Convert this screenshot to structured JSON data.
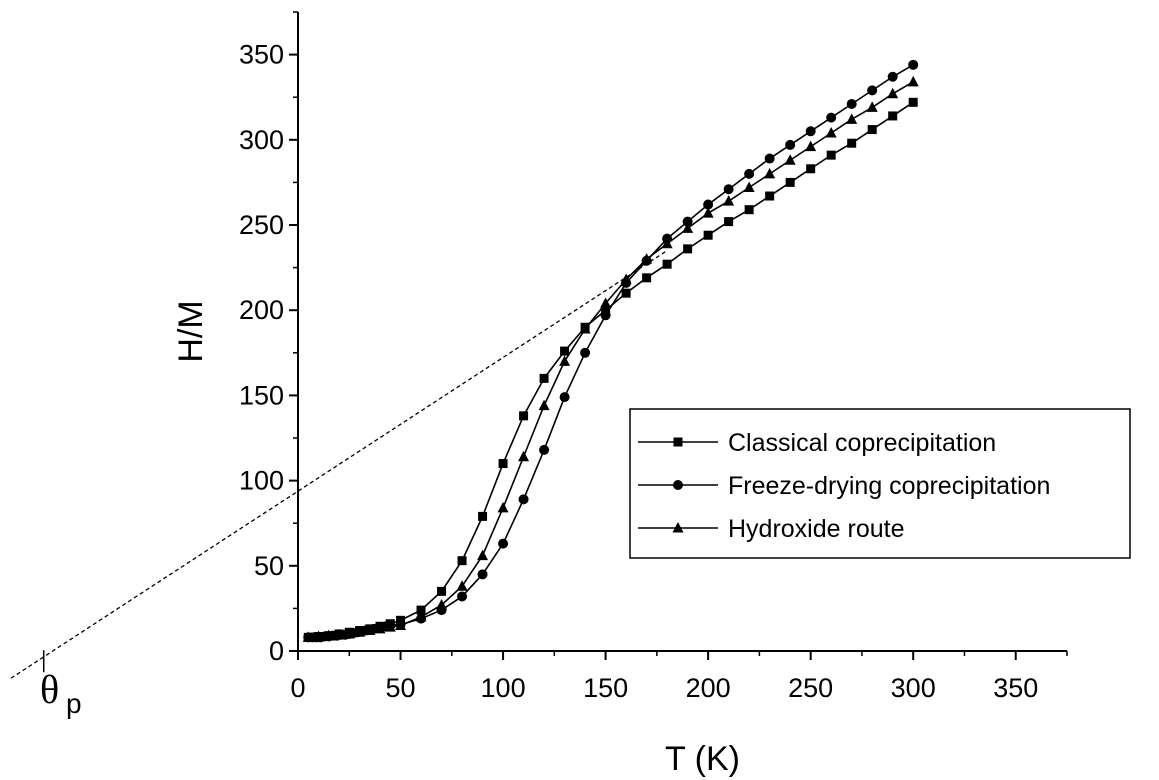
{
  "chart_data": {
    "type": "line",
    "xlabel": "T (K)",
    "ylabel": "H/M",
    "xlim": [
      0,
      375
    ],
    "ylim": [
      0,
      375
    ],
    "xticks": [
      0,
      50,
      100,
      150,
      200,
      250,
      300,
      350
    ],
    "yticks": [
      0,
      50,
      100,
      150,
      200,
      250,
      300,
      350
    ],
    "grid": false,
    "legend_position": "center-right",
    "series": [
      {
        "name": "Classical coprecipitation",
        "marker": "square",
        "color": "#000000",
        "x": [
          5,
          10,
          15,
          20,
          25,
          30,
          35,
          40,
          45,
          50,
          60,
          70,
          80,
          90,
          100,
          110,
          120,
          130,
          140,
          150,
          160,
          170,
          180,
          190,
          200,
          210,
          220,
          230,
          240,
          250,
          260,
          270,
          280,
          290,
          300
        ],
        "y": [
          8,
          8.5,
          9,
          10,
          11,
          12,
          13,
          14.5,
          16,
          18,
          24,
          35,
          53,
          79,
          110,
          138,
          160,
          176,
          190,
          200,
          210,
          219,
          227,
          236,
          244,
          252,
          259,
          267,
          275,
          283,
          291,
          298,
          306,
          314,
          322
        ]
      },
      {
        "name": "Freeze-drying coprecipitation",
        "marker": "circle",
        "color": "#000000",
        "x": [
          5,
          7,
          9,
          11,
          13,
          15,
          17,
          19,
          21,
          23,
          25,
          27,
          29,
          31,
          33,
          35,
          37,
          39,
          41,
          43,
          45,
          50,
          60,
          70,
          80,
          90,
          100,
          110,
          120,
          130,
          140,
          150,
          160,
          170,
          180,
          190,
          200,
          210,
          220,
          230,
          240,
          250,
          260,
          270,
          280,
          290,
          300
        ],
        "y": [
          8,
          8,
          8,
          8,
          8.5,
          8.5,
          9,
          9,
          9.5,
          9.5,
          10,
          10.5,
          11,
          11.5,
          12,
          12.5,
          13,
          13.5,
          14,
          14.5,
          15,
          15.5,
          19,
          24,
          32,
          45,
          63,
          89,
          118,
          149,
          175,
          197,
          216,
          229,
          242,
          252,
          262,
          271,
          280,
          289,
          297,
          305,
          313,
          321,
          329,
          337,
          344
        ]
      },
      {
        "name": "Hydroxide route",
        "marker": "triangle",
        "color": "#000000",
        "x": [
          5,
          10,
          15,
          20,
          25,
          30,
          35,
          40,
          45,
          50,
          60,
          70,
          80,
          90,
          100,
          110,
          120,
          130,
          140,
          150,
          160,
          170,
          180,
          190,
          200,
          210,
          220,
          230,
          240,
          250,
          260,
          270,
          280,
          290,
          300
        ],
        "y": [
          8,
          8.5,
          9,
          9.5,
          10,
          11,
          12,
          13,
          14,
          15,
          20,
          27,
          38,
          56,
          84,
          114,
          144,
          170,
          189,
          204,
          218,
          230,
          239,
          248,
          257,
          264,
          272,
          280,
          288,
          296,
          304,
          312,
          319,
          327,
          334
        ]
      }
    ],
    "extrapolation": {
      "style": "dashed",
      "x": [
        -140,
        180
      ],
      "y": [
        -16,
        235
      ]
    },
    "annotation": {
      "symbol": "θ",
      "subscript": "p"
    }
  }
}
